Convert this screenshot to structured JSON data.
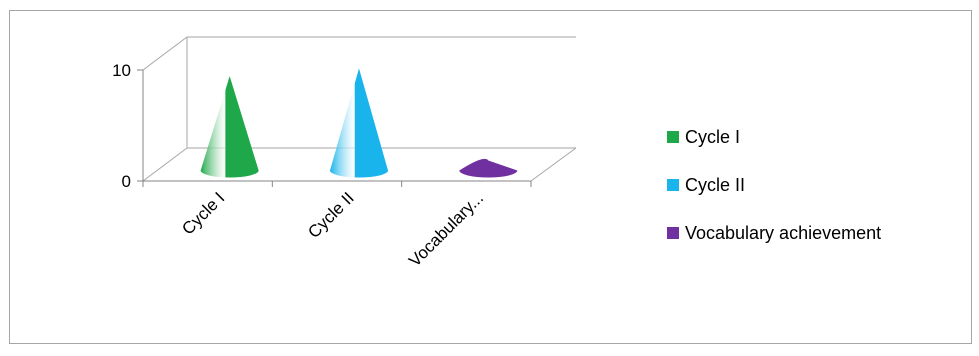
{
  "chart_data": {
    "type": "bar",
    "style": "3d-cone",
    "categories": [
      "Cycle I",
      "Cycle II",
      "Vocabulary..."
    ],
    "values": [
      8.5,
      9.2,
      0.5
    ],
    "colors": [
      "#1fa84a",
      "#1ab4ec",
      "#7030a0"
    ],
    "ylim": [
      0,
      10
    ],
    "yticks": [
      "0",
      "10"
    ],
    "grid": true,
    "legend_position": "right",
    "legend": [
      {
        "label": "Cycle I",
        "color": "#1fa84a"
      },
      {
        "label": "Cycle II",
        "color": "#1ab4ec"
      },
      {
        "label": "Vocabulary achievement",
        "color": "#7030a0"
      }
    ]
  }
}
